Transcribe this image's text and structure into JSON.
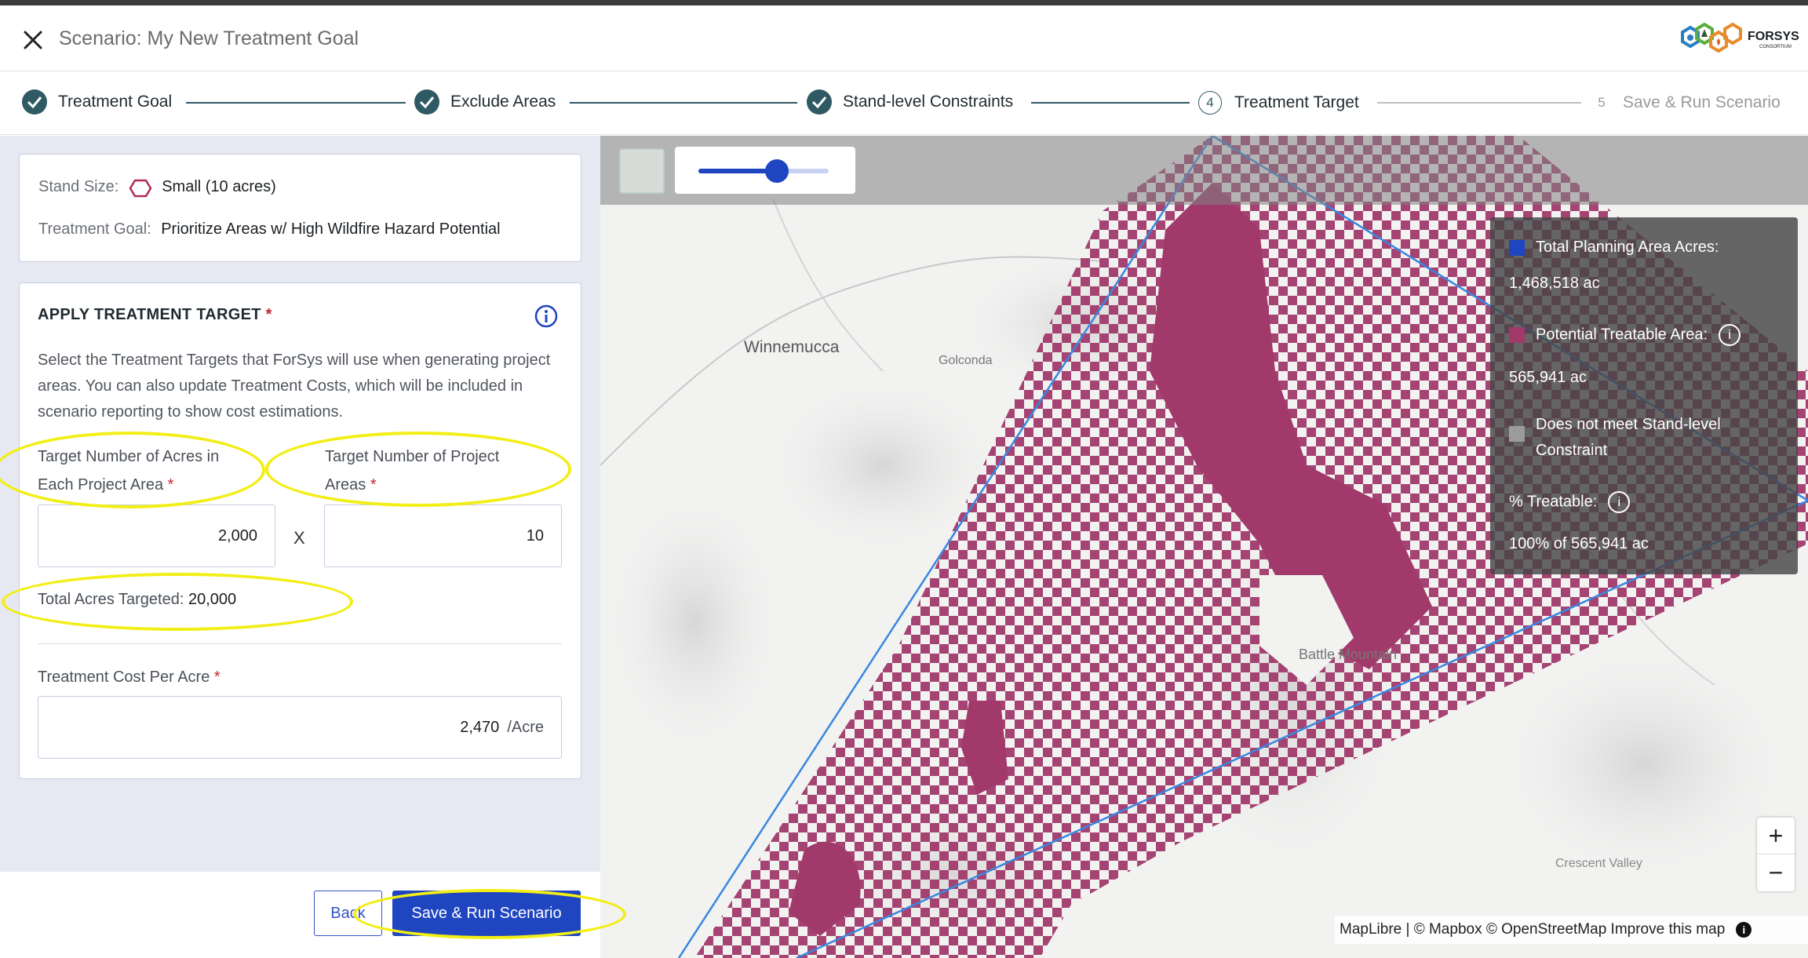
{
  "header": {
    "title": "Scenario: My New Treatment Goal",
    "logo_text": "FORSYS",
    "logo_subtext": "CONSORTIUM"
  },
  "steps": [
    {
      "label": "Treatment Goal",
      "state": "done"
    },
    {
      "label": "Exclude Areas",
      "state": "done"
    },
    {
      "label": "Stand-level Constraints",
      "state": "done"
    },
    {
      "number": "4",
      "label": "Treatment Target",
      "state": "current"
    },
    {
      "number": "5",
      "label": "Save & Run Scenario",
      "state": "upcoming"
    }
  ],
  "summary": {
    "stand_size_label": "Stand Size:",
    "stand_size_value": "Small (10 acres)",
    "goal_label": "Treatment Goal:",
    "goal_value": "Prioritize Areas w/ High Wildfire Hazard Potential"
  },
  "target": {
    "section_title": "APPLY TREATMENT TARGET",
    "required_mark": "*",
    "description": "Select the Treatment Targets that ForSys will use when generating project areas. You can also update Treatment Costs, which will be included in scenario reporting to show cost estimations.",
    "acres_label_line1": "Target Number of Acres in",
    "acres_label_line2": "Each Project Area",
    "acres_value": "2,000",
    "multiply": "X",
    "projects_label_line1": "Target Number of Project",
    "projects_label_line2": "Areas",
    "projects_value": "10",
    "total_label": "Total Acres Targeted:",
    "total_value": "20,000",
    "cost_label": "Treatment Cost Per Acre",
    "cost_value": "2,470",
    "cost_unit": "/Acre"
  },
  "footer": {
    "back_label": "Back",
    "save_label": "Save & Run Scenario"
  },
  "map": {
    "places": [
      "Winnemucca",
      "Golconda",
      "Battle Mountain",
      "Crescent Valley"
    ],
    "opacity_slider_value": 0.6,
    "legend": {
      "total_label": "Total Planning Area Acres:",
      "total_value": "1,468,518 ac",
      "treatable_label": "Potential Treatable Area:",
      "treatable_value": "565,941 ac",
      "constraint_label_line1": "Does not meet Stand-level",
      "constraint_label_line2": "Constraint",
      "pct_label": "% Treatable:",
      "pct_value": "100% of 565,941 ac"
    },
    "zoom_in": "+",
    "zoom_out": "−",
    "attribution": "MapLibre | © Mapbox © OpenStreetMap Improve this map",
    "info_glyph": "i"
  },
  "colors": {
    "accent": "#1f45c0",
    "step_done": "#2f5a63",
    "treatable": "#a13a6b",
    "planning_area": "#1f45c0",
    "highlight": "#f2ee16"
  }
}
